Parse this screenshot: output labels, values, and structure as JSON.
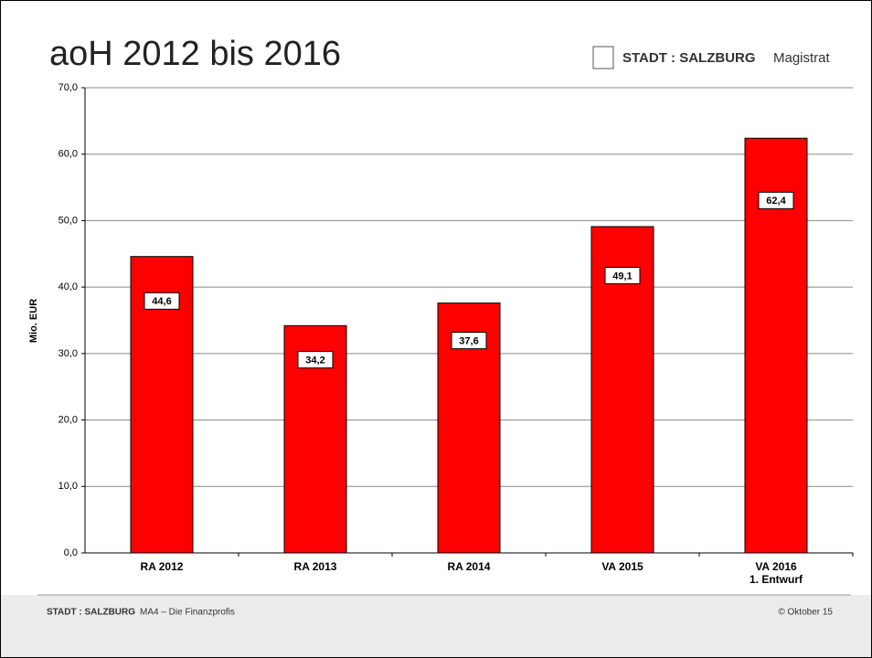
{
  "slide": {
    "logo_brand": "STADT : SALZBURG",
    "logo_suffix": "Magistrat",
    "footer_left_brand": "STADT : SALZBURG",
    "footer_left_text": "MA4 – Die Finanzprofis",
    "footer_right": "© Oktober 15"
  },
  "chart_data": {
    "type": "bar",
    "title": "aoH 2012 bis 2016",
    "y_label": "Mio. EUR",
    "categories": [
      "RA 2012",
      "RA 2013",
      "RA 2014",
      "VA 2015",
      "VA 2016\n1. Entwurf"
    ],
    "values": [
      44.6,
      34.2,
      37.6,
      49.1,
      62.4
    ],
    "value_labels": [
      "44,6",
      "34,2",
      "37,6",
      "49,1",
      "62,4"
    ],
    "color": "#ff0000",
    "ylim": [
      0,
      70
    ],
    "yticks": [
      {
        "value": 0,
        "label": "0,0"
      },
      {
        "value": 10,
        "label": "10,0"
      },
      {
        "value": 20,
        "label": "20,0"
      },
      {
        "value": 30,
        "label": "30,0"
      },
      {
        "value": 40,
        "label": "40,0"
      },
      {
        "value": 50,
        "label": "50,0"
      },
      {
        "value": 60,
        "label": "60,0"
      },
      {
        "value": 70,
        "label": "70,0"
      }
    ],
    "grid": true
  }
}
